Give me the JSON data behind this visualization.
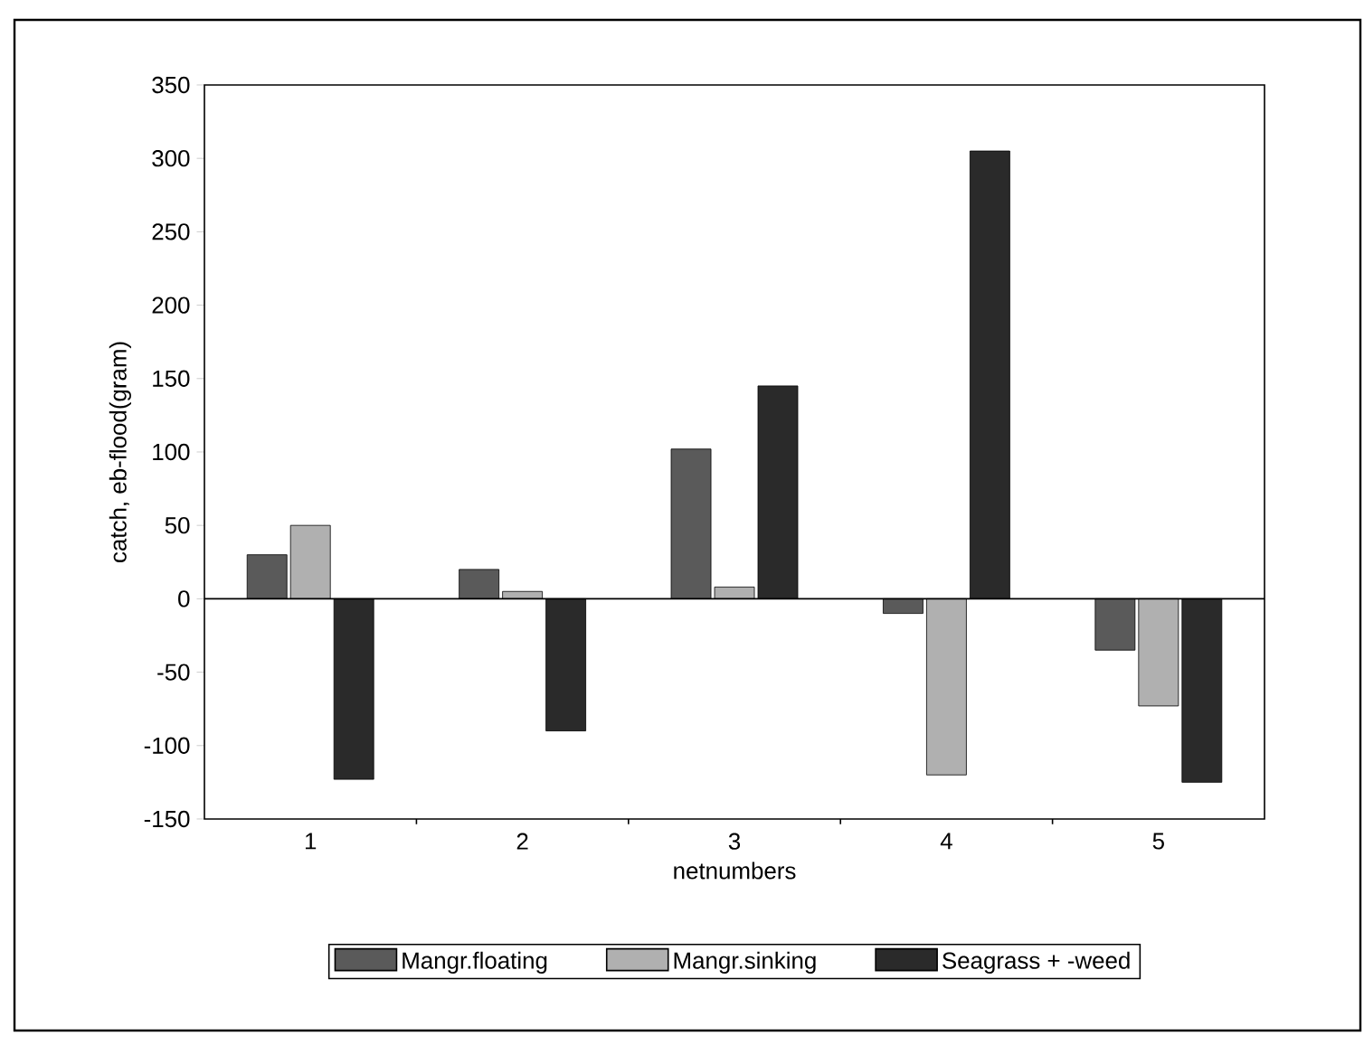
{
  "chart_data": {
    "type": "bar",
    "xlabel": "netnumbers",
    "ylabel": "catch, eb-flood(gram)",
    "categories": [
      "1",
      "2",
      "3",
      "4",
      "5"
    ],
    "series": [
      {
        "name": "Mangr.floating",
        "color": "#5a5a5a",
        "values": [
          30,
          20,
          102,
          -10,
          -35
        ]
      },
      {
        "name": "Mangr.sinking",
        "color": "#b0b0b0",
        "values": [
          50,
          5,
          8,
          -120,
          -73
        ]
      },
      {
        "name": "Seagrass + -weed",
        "color": "#2a2a2a",
        "values": [
          -123,
          -90,
          145,
          305,
          -125
        ]
      }
    ],
    "ylim": [
      -150,
      350
    ],
    "yticks": [
      -150,
      -100,
      -50,
      0,
      50,
      100,
      150,
      200,
      250,
      300,
      350
    ],
    "legend": "bottom"
  }
}
